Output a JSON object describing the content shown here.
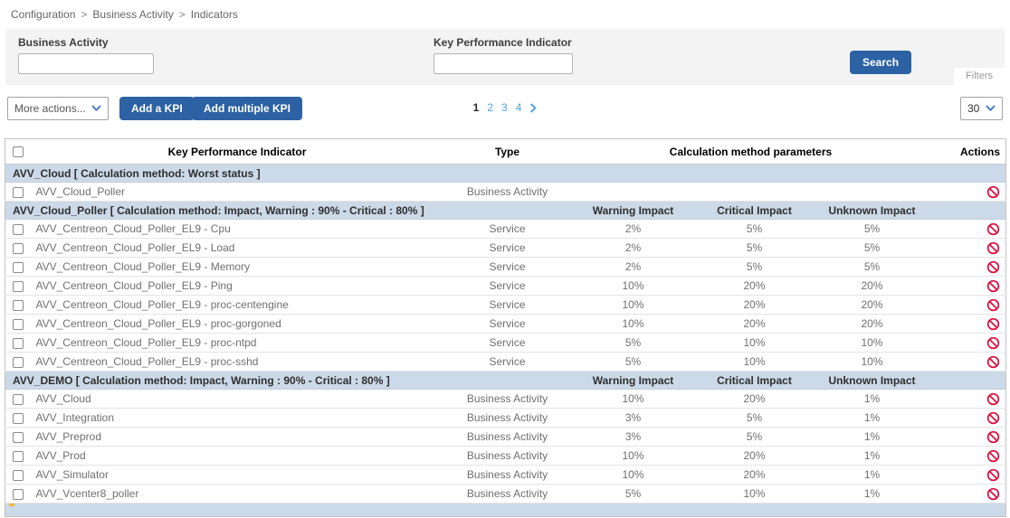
{
  "breadcrumb": {
    "items": [
      "Configuration",
      "Business Activity",
      "Indicators"
    ],
    "separator": ">"
  },
  "filters": {
    "business_activity_label": "Business Activity",
    "business_activity_value": "",
    "kpi_label": "Key Performance Indicator",
    "kpi_value": "",
    "search_label": "Search",
    "filters_tab_label": "Filters"
  },
  "toolbar": {
    "more_actions_label": "More actions...",
    "add_kpi_label": "Add a KPI",
    "add_multiple_kpi_label": "Add multiple KPI",
    "page_size_value": "30"
  },
  "pagination": {
    "pages": [
      "1",
      "2",
      "3",
      "4"
    ],
    "current": "1",
    "next_icon": "chevron-right-icon"
  },
  "table": {
    "headers": {
      "kpi": "Key Performance Indicator",
      "type": "Type",
      "calc": "Calculation method parameters",
      "actions": "Actions"
    },
    "impact_headers": [
      "Warning Impact",
      "Critical Impact",
      "Unknown Impact"
    ],
    "action_icon": "forbidden-icon",
    "groups": [
      {
        "title": "AVV_Cloud [ Calculation method: Worst status ]",
        "impact_headers": false,
        "rows": [
          {
            "name": "AVV_Cloud_Poller",
            "type": "Business Activity",
            "warning": "",
            "critical": "",
            "unknown": ""
          }
        ]
      },
      {
        "title": "AVV_Cloud_Poller [ Calculation method: Impact, Warning : 90% - Critical : 80% ]",
        "impact_headers": true,
        "rows": [
          {
            "name": "AVV_Centreon_Cloud_Poller_EL9 - Cpu",
            "type": "Service",
            "warning": "2%",
            "critical": "5%",
            "unknown": "5%"
          },
          {
            "name": "AVV_Centreon_Cloud_Poller_EL9 - Load",
            "type": "Service",
            "warning": "2%",
            "critical": "5%",
            "unknown": "5%"
          },
          {
            "name": "AVV_Centreon_Cloud_Poller_EL9 - Memory",
            "type": "Service",
            "warning": "2%",
            "critical": "5%",
            "unknown": "5%"
          },
          {
            "name": "AVV_Centreon_Cloud_Poller_EL9 - Ping",
            "type": "Service",
            "warning": "10%",
            "critical": "20%",
            "unknown": "20%"
          },
          {
            "name": "AVV_Centreon_Cloud_Poller_EL9 - proc-centengine",
            "type": "Service",
            "warning": "10%",
            "critical": "20%",
            "unknown": "20%"
          },
          {
            "name": "AVV_Centreon_Cloud_Poller_EL9 - proc-gorgoned",
            "type": "Service",
            "warning": "10%",
            "critical": "20%",
            "unknown": "20%"
          },
          {
            "name": "AVV_Centreon_Cloud_Poller_EL9 - proc-ntpd",
            "type": "Service",
            "warning": "5%",
            "critical": "10%",
            "unknown": "10%"
          },
          {
            "name": "AVV_Centreon_Cloud_Poller_EL9 - proc-sshd",
            "type": "Service",
            "warning": "5%",
            "critical": "10%",
            "unknown": "10%"
          }
        ]
      },
      {
        "title": "AVV_DEMO [ Calculation method: Impact, Warning : 90% - Critical : 80% ]",
        "impact_headers": true,
        "rows": [
          {
            "name": "AVV_Cloud",
            "type": "Business Activity",
            "warning": "10%",
            "critical": "20%",
            "unknown": "1%"
          },
          {
            "name": "AVV_Integration",
            "type": "Business Activity",
            "warning": "3%",
            "critical": "5%",
            "unknown": "1%"
          },
          {
            "name": "AVV_Preprod",
            "type": "Business Activity",
            "warning": "3%",
            "critical": "5%",
            "unknown": "1%"
          },
          {
            "name": "AVV_Prod",
            "type": "Business Activity",
            "warning": "10%",
            "critical": "20%",
            "unknown": "1%"
          },
          {
            "name": "AVV_Simulator",
            "type": "Business Activity",
            "warning": "10%",
            "critical": "20%",
            "unknown": "1%"
          },
          {
            "name": "AVV_Vcenter8_poller",
            "type": "Business Activity",
            "warning": "5%",
            "critical": "10%",
            "unknown": "1%"
          }
        ]
      }
    ]
  },
  "colors": {
    "accent_blue": "#2c62a3",
    "link_blue": "#4fa3e0",
    "chevron_blue": "#4a7dc8",
    "group_bg": "#ccd9e8",
    "action_red": "#e00b3d"
  }
}
